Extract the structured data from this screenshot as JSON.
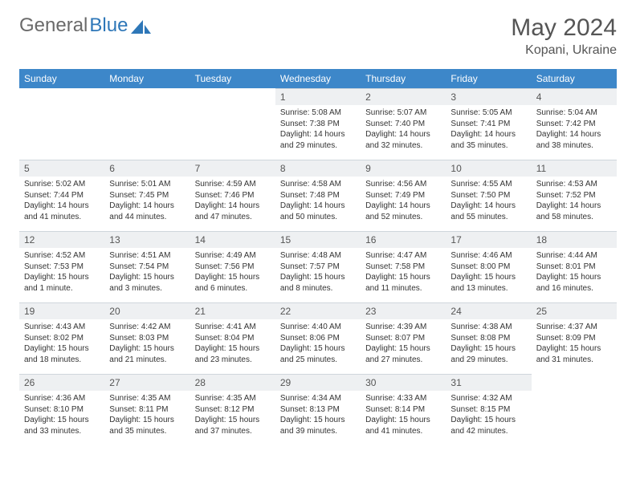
{
  "brand": {
    "part1": "General",
    "part2": "Blue"
  },
  "title": "May 2024",
  "location": "Kopani, Ukraine",
  "colors": {
    "header_bg": "#3d87c9",
    "header_text": "#ffffff",
    "daynum_bg": "#eef0f2",
    "text": "#333333",
    "logo_gray": "#6a6a6a",
    "logo_blue": "#2e77b8"
  },
  "weekdays": [
    "Sunday",
    "Monday",
    "Tuesday",
    "Wednesday",
    "Thursday",
    "Friday",
    "Saturday"
  ],
  "weeks": [
    [
      {
        "empty": true
      },
      {
        "empty": true
      },
      {
        "empty": true
      },
      {
        "n": "1",
        "sr": "Sunrise: 5:08 AM",
        "ss": "Sunset: 7:38 PM",
        "dl": "Daylight: 14 hours and 29 minutes."
      },
      {
        "n": "2",
        "sr": "Sunrise: 5:07 AM",
        "ss": "Sunset: 7:40 PM",
        "dl": "Daylight: 14 hours and 32 minutes."
      },
      {
        "n": "3",
        "sr": "Sunrise: 5:05 AM",
        "ss": "Sunset: 7:41 PM",
        "dl": "Daylight: 14 hours and 35 minutes."
      },
      {
        "n": "4",
        "sr": "Sunrise: 5:04 AM",
        "ss": "Sunset: 7:42 PM",
        "dl": "Daylight: 14 hours and 38 minutes."
      }
    ],
    [
      {
        "n": "5",
        "sr": "Sunrise: 5:02 AM",
        "ss": "Sunset: 7:44 PM",
        "dl": "Daylight: 14 hours and 41 minutes."
      },
      {
        "n": "6",
        "sr": "Sunrise: 5:01 AM",
        "ss": "Sunset: 7:45 PM",
        "dl": "Daylight: 14 hours and 44 minutes."
      },
      {
        "n": "7",
        "sr": "Sunrise: 4:59 AM",
        "ss": "Sunset: 7:46 PM",
        "dl": "Daylight: 14 hours and 47 minutes."
      },
      {
        "n": "8",
        "sr": "Sunrise: 4:58 AM",
        "ss": "Sunset: 7:48 PM",
        "dl": "Daylight: 14 hours and 50 minutes."
      },
      {
        "n": "9",
        "sr": "Sunrise: 4:56 AM",
        "ss": "Sunset: 7:49 PM",
        "dl": "Daylight: 14 hours and 52 minutes."
      },
      {
        "n": "10",
        "sr": "Sunrise: 4:55 AM",
        "ss": "Sunset: 7:50 PM",
        "dl": "Daylight: 14 hours and 55 minutes."
      },
      {
        "n": "11",
        "sr": "Sunrise: 4:53 AM",
        "ss": "Sunset: 7:52 PM",
        "dl": "Daylight: 14 hours and 58 minutes."
      }
    ],
    [
      {
        "n": "12",
        "sr": "Sunrise: 4:52 AM",
        "ss": "Sunset: 7:53 PM",
        "dl": "Daylight: 15 hours and 1 minute."
      },
      {
        "n": "13",
        "sr": "Sunrise: 4:51 AM",
        "ss": "Sunset: 7:54 PM",
        "dl": "Daylight: 15 hours and 3 minutes."
      },
      {
        "n": "14",
        "sr": "Sunrise: 4:49 AM",
        "ss": "Sunset: 7:56 PM",
        "dl": "Daylight: 15 hours and 6 minutes."
      },
      {
        "n": "15",
        "sr": "Sunrise: 4:48 AM",
        "ss": "Sunset: 7:57 PM",
        "dl": "Daylight: 15 hours and 8 minutes."
      },
      {
        "n": "16",
        "sr": "Sunrise: 4:47 AM",
        "ss": "Sunset: 7:58 PM",
        "dl": "Daylight: 15 hours and 11 minutes."
      },
      {
        "n": "17",
        "sr": "Sunrise: 4:46 AM",
        "ss": "Sunset: 8:00 PM",
        "dl": "Daylight: 15 hours and 13 minutes."
      },
      {
        "n": "18",
        "sr": "Sunrise: 4:44 AM",
        "ss": "Sunset: 8:01 PM",
        "dl": "Daylight: 15 hours and 16 minutes."
      }
    ],
    [
      {
        "n": "19",
        "sr": "Sunrise: 4:43 AM",
        "ss": "Sunset: 8:02 PM",
        "dl": "Daylight: 15 hours and 18 minutes."
      },
      {
        "n": "20",
        "sr": "Sunrise: 4:42 AM",
        "ss": "Sunset: 8:03 PM",
        "dl": "Daylight: 15 hours and 21 minutes."
      },
      {
        "n": "21",
        "sr": "Sunrise: 4:41 AM",
        "ss": "Sunset: 8:04 PM",
        "dl": "Daylight: 15 hours and 23 minutes."
      },
      {
        "n": "22",
        "sr": "Sunrise: 4:40 AM",
        "ss": "Sunset: 8:06 PM",
        "dl": "Daylight: 15 hours and 25 minutes."
      },
      {
        "n": "23",
        "sr": "Sunrise: 4:39 AM",
        "ss": "Sunset: 8:07 PM",
        "dl": "Daylight: 15 hours and 27 minutes."
      },
      {
        "n": "24",
        "sr": "Sunrise: 4:38 AM",
        "ss": "Sunset: 8:08 PM",
        "dl": "Daylight: 15 hours and 29 minutes."
      },
      {
        "n": "25",
        "sr": "Sunrise: 4:37 AM",
        "ss": "Sunset: 8:09 PM",
        "dl": "Daylight: 15 hours and 31 minutes."
      }
    ],
    [
      {
        "n": "26",
        "sr": "Sunrise: 4:36 AM",
        "ss": "Sunset: 8:10 PM",
        "dl": "Daylight: 15 hours and 33 minutes."
      },
      {
        "n": "27",
        "sr": "Sunrise: 4:35 AM",
        "ss": "Sunset: 8:11 PM",
        "dl": "Daylight: 15 hours and 35 minutes."
      },
      {
        "n": "28",
        "sr": "Sunrise: 4:35 AM",
        "ss": "Sunset: 8:12 PM",
        "dl": "Daylight: 15 hours and 37 minutes."
      },
      {
        "n": "29",
        "sr": "Sunrise: 4:34 AM",
        "ss": "Sunset: 8:13 PM",
        "dl": "Daylight: 15 hours and 39 minutes."
      },
      {
        "n": "30",
        "sr": "Sunrise: 4:33 AM",
        "ss": "Sunset: 8:14 PM",
        "dl": "Daylight: 15 hours and 41 minutes."
      },
      {
        "n": "31",
        "sr": "Sunrise: 4:32 AM",
        "ss": "Sunset: 8:15 PM",
        "dl": "Daylight: 15 hours and 42 minutes."
      },
      {
        "empty": true
      }
    ]
  ]
}
